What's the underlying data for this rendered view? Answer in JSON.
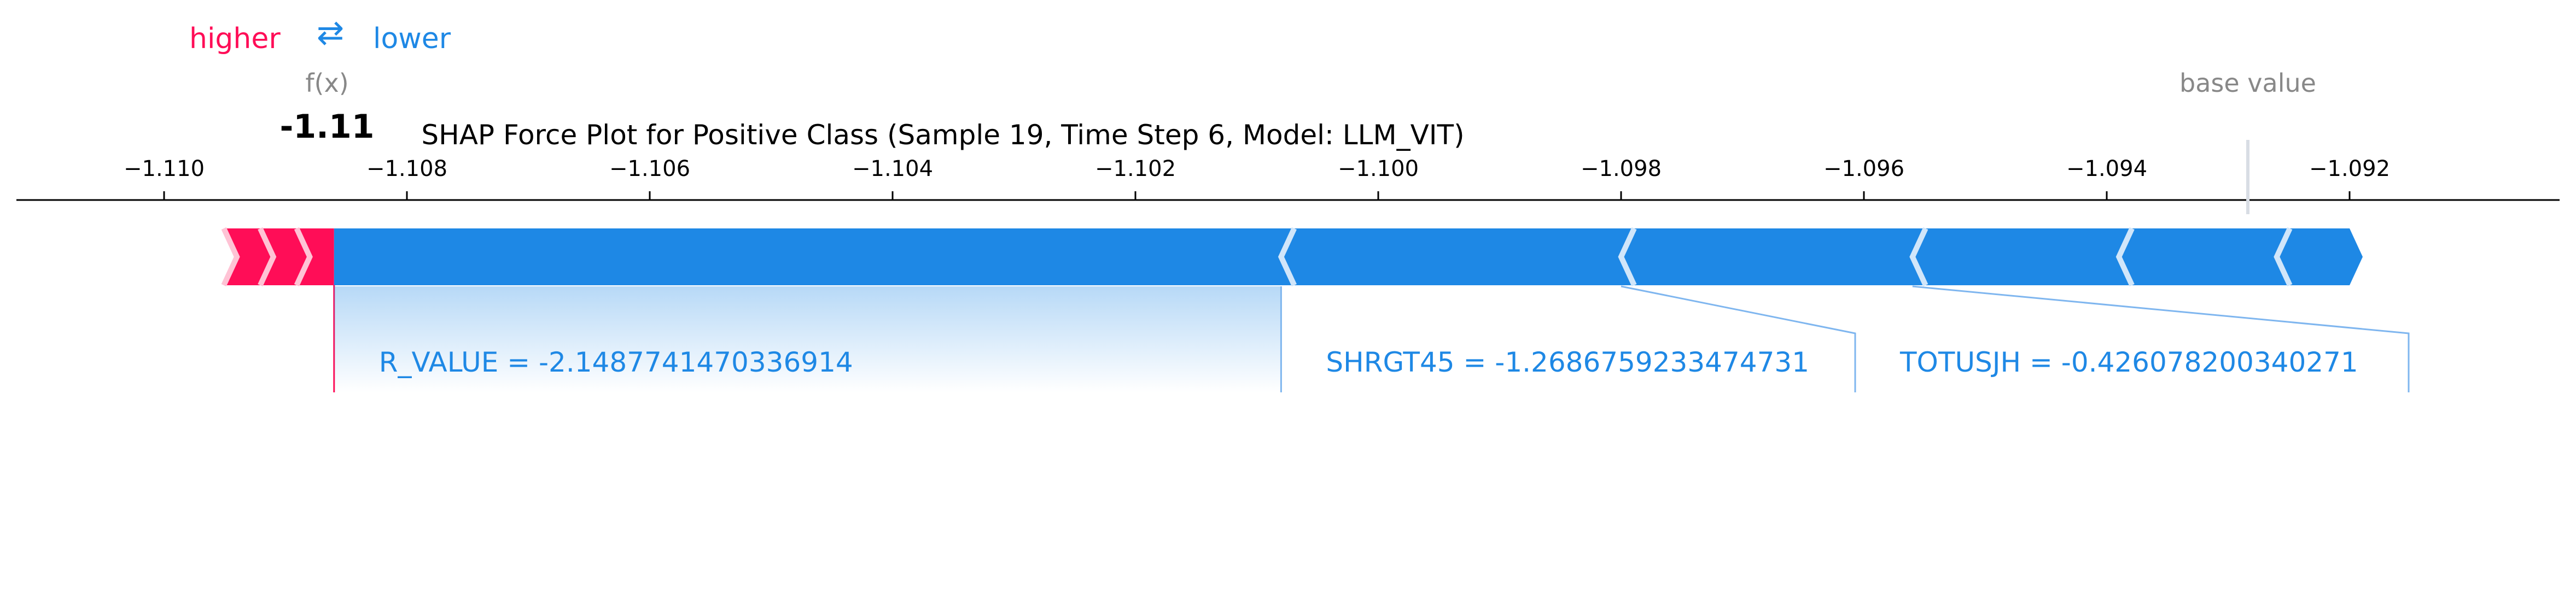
{
  "legend": {
    "higher": "higher",
    "arrow": "⇄",
    "lower": "lower"
  },
  "labels": {
    "fx": "f(x)",
    "fx_value": "-1.11",
    "base_value": "base value"
  },
  "colors": {
    "positive": "#ff0d57",
    "negative": "#1e88e5",
    "text_gray": "#888888",
    "axis": "#000000"
  },
  "chart_data": {
    "type": "force",
    "title": "SHAP Force Plot for Positive Class (Sample 19, Time Step 6, Model: LLM_VIT)",
    "xlim": [
      -1.111,
      -1.0904
    ],
    "ticks": [
      -1.11,
      -1.108,
      -1.106,
      -1.104,
      -1.102,
      -1.1,
      -1.098,
      -1.096,
      -1.094,
      -1.092
    ],
    "tick_labels": [
      "−1.110",
      "−1.108",
      "−1.106",
      "−1.104",
      "−1.102",
      "−1.100",
      "−1.098",
      "−1.096",
      "−1.094",
      "−1.092"
    ],
    "output_value": -1.1086,
    "base_value": -1.0931,
    "positive_start": -1.1095,
    "negative_end": -1.092,
    "negative_separators": [
      -1.1008,
      -1.098,
      -1.0956,
      -1.0939,
      -1.0926
    ],
    "positive_separators": [
      -1.1094,
      -1.1091,
      -1.1088
    ],
    "features": [
      {
        "name": "R_VALUE",
        "label": "R_VALUE = -2.1487741470336914",
        "start": -1.1086,
        "end": -1.1008,
        "effect": "negative"
      },
      {
        "name": "SHRGT45",
        "label": "SHRGT45 = -1.2686759233474731",
        "start": -1.1008,
        "end": -1.098,
        "effect": "negative"
      },
      {
        "name": "TOTUSJH",
        "label": "TOTUSJH = -0.426078200340271",
        "start": -1.098,
        "end": -1.0956,
        "effect": "negative"
      }
    ]
  }
}
